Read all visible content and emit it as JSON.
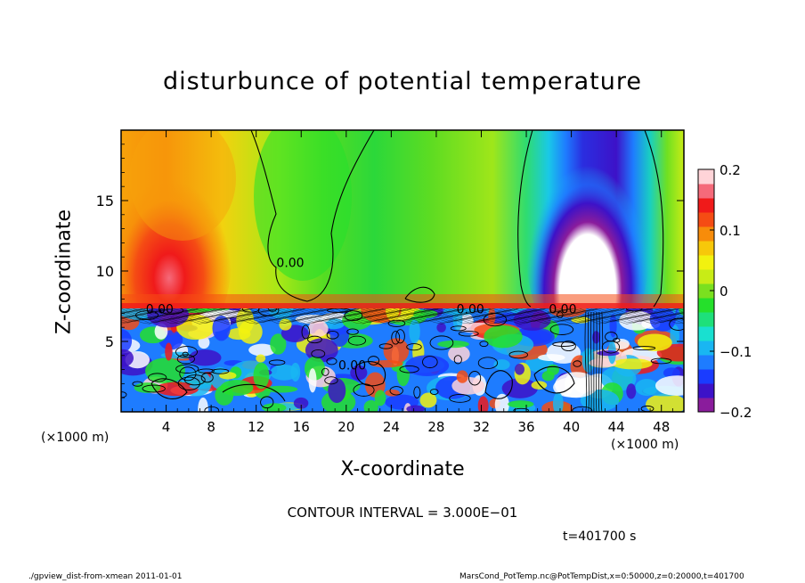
{
  "chart_data": {
    "type": "heatmap",
    "title": "disturbunce of potential temperature",
    "xlabel": "X-coordinate",
    "ylabel": "Z-coordinate",
    "x_unit_label": "(×1000 m)",
    "xlim": [
      0,
      50
    ],
    "ylim": [
      0,
      20
    ],
    "x_ticks": [
      4,
      8,
      12,
      16,
      20,
      24,
      28,
      32,
      36,
      40,
      44,
      48
    ],
    "y_ticks": [
      5,
      10,
      15
    ],
    "colorbar": {
      "range": [
        -0.2,
        0.2
      ],
      "ticks": [
        {
          "value": 0.2,
          "label": "0.2"
        },
        {
          "value": 0.1,
          "label": "0.1"
        },
        {
          "value": 0,
          "label": "0"
        },
        {
          "value": -0.1,
          "label": "−0.1"
        },
        {
          "value": -0.2,
          "label": "−0.2"
        }
      ],
      "colors": [
        "#8a1c9c",
        "#3d12c8",
        "#1a3cff",
        "#1e7cff",
        "#19b6f2",
        "#19e0d0",
        "#1ee07a",
        "#25e02b",
        "#7ae01f",
        "#c8ec16",
        "#f2f20f",
        "#f7c80a",
        "#f78c0a",
        "#f54c14",
        "#f01a1a",
        "#f56a7a",
        "#ffd4d8"
      ],
      "position": "right"
    },
    "contour_labels": [
      {
        "x": 2.2,
        "z": 7.0,
        "label": "0.00"
      },
      {
        "x": 13.8,
        "z": 10.3,
        "label": "0.00"
      },
      {
        "x": 29.8,
        "z": 7.0,
        "label": "0.00"
      },
      {
        "x": 19.3,
        "z": 3.0,
        "label": "0.00"
      },
      {
        "x": 38.0,
        "z": 7.0,
        "label": "0.00"
      }
    ],
    "annotations": {
      "contour_interval": "CONTOUR INTERVAL = 3.000E−01",
      "time": "t=401700 s"
    }
  },
  "footer": {
    "left": "./gpview_dist-from-xmean  2011-01-01",
    "right": "MarsCond_PotTemp.nc@PotTempDist,x=0:50000,z=0:20000,t=401700"
  },
  "colors": {
    "background": "#ffffff",
    "frame": "#000000"
  }
}
